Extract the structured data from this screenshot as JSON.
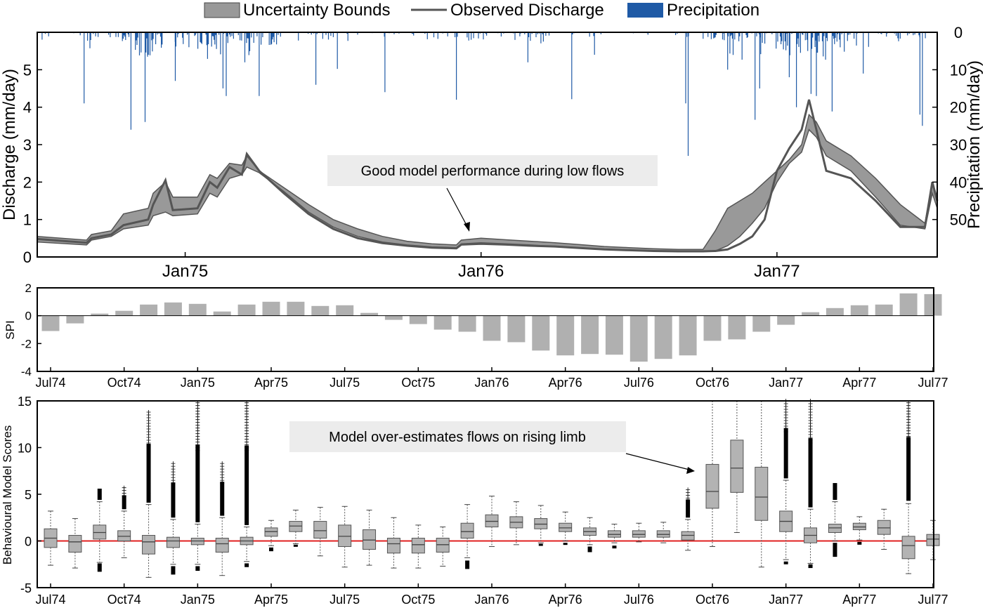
{
  "legend": {
    "items": [
      {
        "label": "Uncertainty Bounds",
        "icon": "gray-filled-rect",
        "color": "#999999"
      },
      {
        "label": "Observed Discharge",
        "icon": "dark-line",
        "color": "#555555"
      },
      {
        "label": "Precipitation",
        "icon": "blue-filled-rect",
        "color": "#1f5aa6"
      }
    ]
  },
  "chart_data": [
    {
      "type": "line",
      "ylabel": "Discharge (mm/day)",
      "ylabel_right": "Precipitation (mm/day)",
      "ylim": [
        0,
        6
      ],
      "ylim_right": [
        0,
        60
      ],
      "right_axis_inverted": true,
      "yticks": [
        "0",
        "1",
        "2",
        "3",
        "4",
        "5"
      ],
      "yticks_right": [
        "0",
        "10",
        "20",
        "30",
        "40",
        "50"
      ],
      "xticks": [
        "Jan75",
        "Jan76",
        "Jan77"
      ],
      "xlim": [
        0,
        36.5
      ],
      "xtick_positions": [
        6,
        18,
        30
      ],
      "annotation": "Good model performance during low flows",
      "series": [
        {
          "name": "Uncertainty Bounds",
          "kind": "band",
          "x": [
            0,
            2,
            2.2,
            3,
            3.5,
            4.5,
            4.7,
            5.2,
            5.5,
            6.5,
            7,
            7.3,
            7.8,
            8.3,
            8.5,
            9,
            10,
            11,
            12,
            13,
            14,
            15,
            16,
            17,
            17.2,
            18,
            19,
            20,
            21,
            22,
            23,
            24,
            25,
            26,
            27,
            27.5,
            28,
            28.5,
            29,
            29.5,
            30,
            30.5,
            31,
            31.3,
            31.6,
            32,
            33,
            34,
            35,
            36,
            36.3,
            36.5
          ],
          "upper": [
            0.55,
            0.45,
            0.6,
            0.7,
            1.15,
            1.3,
            1.7,
            2.0,
            1.6,
            1.6,
            2.2,
            2.1,
            2.5,
            2.45,
            2.7,
            2.3,
            1.85,
            1.4,
            1.0,
            0.75,
            0.55,
            0.42,
            0.35,
            0.32,
            0.45,
            0.5,
            0.46,
            0.42,
            0.38,
            0.33,
            0.28,
            0.25,
            0.22,
            0.2,
            0.2,
            0.7,
            1.3,
            1.5,
            1.7,
            2.0,
            2.3,
            2.6,
            3.0,
            3.8,
            3.6,
            3.1,
            2.7,
            2.1,
            1.4,
            0.9,
            2.0,
            1.6
          ],
          "lower": [
            0.4,
            0.32,
            0.45,
            0.55,
            0.75,
            0.85,
            1.1,
            1.2,
            1.1,
            1.15,
            1.7,
            1.6,
            2.1,
            2.2,
            2.4,
            2.25,
            1.75,
            1.2,
            0.8,
            0.55,
            0.4,
            0.32,
            0.27,
            0.25,
            0.35,
            0.38,
            0.35,
            0.32,
            0.28,
            0.24,
            0.2,
            0.18,
            0.16,
            0.15,
            0.15,
            0.16,
            0.3,
            0.55,
            0.9,
            1.3,
            2.0,
            2.5,
            2.8,
            3.4,
            3.2,
            2.7,
            2.3,
            1.6,
            0.85,
            0.75,
            1.7,
            1.3
          ]
        },
        {
          "name": "Observed Discharge",
          "kind": "line",
          "x": [
            0,
            2,
            2.2,
            3,
            3.5,
            4.5,
            4.7,
            5.2,
            5.5,
            6.5,
            7,
            7.3,
            7.8,
            8.3,
            8.5,
            9,
            10,
            11,
            12,
            13,
            14,
            15,
            16,
            17,
            17.2,
            18,
            19,
            20,
            21,
            22,
            23,
            24,
            25,
            26,
            27,
            27.5,
            28,
            28.5,
            29,
            29.5,
            30,
            30.5,
            31,
            31.3,
            31.6,
            32,
            33,
            34,
            35,
            36,
            36.3,
            36.5
          ],
          "y": [
            0.48,
            0.38,
            0.5,
            0.6,
            0.85,
            1.0,
            1.4,
            2.05,
            1.25,
            1.3,
            2.0,
            1.85,
            2.4,
            2.2,
            2.75,
            2.3,
            1.7,
            1.15,
            0.75,
            0.5,
            0.37,
            0.3,
            0.25,
            0.23,
            0.33,
            0.35,
            0.33,
            0.3,
            0.28,
            0.24,
            0.2,
            0.18,
            0.16,
            0.15,
            0.15,
            0.16,
            0.2,
            0.35,
            0.55,
            1.0,
            2.3,
            2.9,
            3.4,
            4.2,
            3.4,
            2.3,
            2.1,
            1.5,
            0.8,
            0.8,
            2.0,
            1.5
          ]
        },
        {
          "name": "Precipitation",
          "kind": "bar",
          "values_max": 48,
          "note": "daily precipitation hanging from top axis, up to ~48 mm/day"
        }
      ]
    },
    {
      "type": "bar",
      "ylabel": "SPI",
      "ylim": [
        -4,
        2
      ],
      "yticks": [
        "2",
        "0",
        "-2",
        "-4"
      ],
      "xticks": [
        "Jul74",
        "Oct74",
        "Jan75",
        "Apr75",
        "Jul75",
        "Oct75",
        "Jan76",
        "Apr76",
        "Jul76",
        "Oct76",
        "Jan77",
        "Apr77",
        "Jul77"
      ],
      "categories": [
        "Jul74",
        "Aug74",
        "Sep74",
        "Oct74",
        "Nov74",
        "Dec74",
        "Jan75",
        "Feb75",
        "Mar75",
        "Apr75",
        "May75",
        "Jun75",
        "Jul75",
        "Aug75",
        "Sep75",
        "Oct75",
        "Nov75",
        "Dec75",
        "Jan76",
        "Feb76",
        "Mar76",
        "Apr76",
        "May76",
        "Jun76",
        "Jul76",
        "Aug76",
        "Sep76",
        "Oct76",
        "Nov76",
        "Dec76",
        "Jan77",
        "Feb77",
        "Mar77",
        "Apr77",
        "May77",
        "Jun77",
        "Jul77"
      ],
      "values": [
        -1.1,
        -0.55,
        0.15,
        0.35,
        0.8,
        0.95,
        0.85,
        0.3,
        0.8,
        1.0,
        1.0,
        0.7,
        0.75,
        0.2,
        -0.3,
        -0.6,
        -1.0,
        -1.15,
        -1.8,
        -1.9,
        -2.5,
        -2.85,
        -2.75,
        -2.8,
        -3.3,
        -3.1,
        -2.85,
        -1.8,
        -1.7,
        -1.15,
        -0.65,
        0.25,
        0.55,
        0.75,
        0.8,
        1.6,
        1.55
      ],
      "color": "#b0b0b0"
    },
    {
      "type": "box",
      "ylabel": "Behavioural Model Scores",
      "ylim": [
        -5,
        15
      ],
      "yticks": [
        "15",
        "10",
        "5",
        "0",
        "-5"
      ],
      "xticks": [
        "Jul74",
        "Oct74",
        "Jan75",
        "Apr75",
        "Jul75",
        "Oct75",
        "Jan76",
        "Apr76",
        "Jul76",
        "Oct76",
        "Jan77",
        "Apr77",
        "Jul77"
      ],
      "reference_line": 0,
      "reference_color": "#e02020",
      "annotation": "Model over-estimates flows on rising limb",
      "boxes": [
        {
          "q1": -0.7,
          "med": 0.3,
          "q3": 1.3,
          "wlo": -2.6,
          "whi": 3.2
        },
        {
          "q1": -1.2,
          "med": -0.1,
          "q3": 0.6,
          "wlo": -2.9,
          "whi": 2.4
        },
        {
          "q1": 0.2,
          "med": 0.9,
          "q3": 1.7,
          "wlo": -2.3,
          "whi": 4.2,
          "outhi": [
            4.4,
            5.6
          ],
          "outlo": [
            -3.3,
            -2.4
          ]
        },
        {
          "q1": 0.0,
          "med": 0.5,
          "q3": 1.1,
          "wlo": -1.8,
          "whi": 3.2,
          "outhi": [
            3.4,
            5.7
          ]
        },
        {
          "q1": -1.4,
          "med": -0.1,
          "q3": 0.6,
          "wlo": -3.9,
          "whi": 3.9,
          "outhi": [
            4.1,
            13.8
          ]
        },
        {
          "q1": -0.7,
          "med": 0.0,
          "q3": 0.4,
          "wlo": -2.5,
          "whi": 2.3,
          "outhi": [
            2.5,
            8.3
          ],
          "outlo": [
            -3.6,
            -2.7
          ]
        },
        {
          "q1": -0.4,
          "med": 0.0,
          "q3": 0.3,
          "wlo": -2.5,
          "whi": 1.8,
          "outhi": [
            2.0,
            14.8
          ],
          "outlo": [
            -3.2,
            -2.7
          ]
        },
        {
          "q1": -1.2,
          "med": -0.3,
          "q3": 0.3,
          "wlo": -3.7,
          "whi": 2.5,
          "outhi": [
            2.7,
            8.3
          ]
        },
        {
          "q1": -0.4,
          "med": 0.0,
          "q3": 0.4,
          "wlo": -2.2,
          "whi": 1.5,
          "outhi": [
            1.7,
            14.8
          ],
          "outlo": [
            -2.8,
            -2.4
          ]
        },
        {
          "q1": 0.5,
          "med": 1.0,
          "q3": 1.4,
          "wlo": -0.5,
          "whi": 2.2,
          "outlo": [
            -1.1,
            -0.7
          ]
        },
        {
          "q1": 1.0,
          "med": 1.6,
          "q3": 2.1,
          "wlo": -0.3,
          "whi": 3.3,
          "outlo": [
            -0.6,
            -0.4
          ]
        },
        {
          "q1": 0.3,
          "med": 1.1,
          "q3": 2.1,
          "wlo": -1.6,
          "whi": 3.6
        },
        {
          "q1": -0.6,
          "med": 0.5,
          "q3": 1.7,
          "wlo": -2.8,
          "whi": 3.7
        },
        {
          "q1": -0.9,
          "med": 0.1,
          "q3": 1.2,
          "wlo": -2.6,
          "whi": 3.3
        },
        {
          "q1": -1.3,
          "med": -0.3,
          "q3": 0.3,
          "wlo": -2.9,
          "whi": 2.5
        },
        {
          "q1": -1.3,
          "med": -0.4,
          "q3": 0.3,
          "wlo": -2.9,
          "whi": 1.7
        },
        {
          "q1": -1.2,
          "med": -0.4,
          "q3": 0.3,
          "wlo": -2.7,
          "whi": 1.5
        },
        {
          "q1": 0.3,
          "med": 1.0,
          "q3": 1.9,
          "wlo": -1.8,
          "whi": 3.9,
          "outlo": [
            -3.0,
            -2.1
          ]
        },
        {
          "q1": 1.5,
          "med": 2.1,
          "q3": 2.8,
          "wlo": -0.6,
          "whi": 4.8
        },
        {
          "q1": 1.4,
          "med": 2.0,
          "q3": 2.6,
          "wlo": -0.4,
          "whi": 4.2
        },
        {
          "q1": 1.3,
          "med": 1.8,
          "q3": 2.4,
          "wlo": -0.2,
          "whi": 3.8,
          "outlo": [
            -0.4,
            -0.3
          ]
        },
        {
          "q1": 1.0,
          "med": 1.4,
          "q3": 1.9,
          "wlo": 0.0,
          "whi": 3.1,
          "outlo": [
            -0.4,
            -0.2
          ]
        },
        {
          "q1": 0.6,
          "med": 1.0,
          "q3": 1.4,
          "wlo": -0.4,
          "whi": 2.5,
          "outlo": [
            -1.2,
            -0.6
          ]
        },
        {
          "q1": 0.4,
          "med": 0.7,
          "q3": 1.1,
          "wlo": -0.2,
          "whi": 1.8,
          "outlo": [
            -0.8,
            -0.5
          ]
        },
        {
          "q1": 0.4,
          "med": 0.7,
          "q3": 1.1,
          "wlo": -0.1,
          "whi": 1.9
        },
        {
          "q1": 0.4,
          "med": 0.7,
          "q3": 1.1,
          "wlo": -0.2,
          "whi": 2.0
        },
        {
          "q1": 0.1,
          "med": 0.6,
          "q3": 1.0,
          "wlo": -1.0,
          "whi": 2.3,
          "outhi": [
            2.5,
            5.5
          ]
        },
        {
          "q1": 3.5,
          "med": 5.3,
          "q3": 8.2,
          "wlo": -0.6,
          "whi": 15.0
        },
        {
          "q1": 5.2,
          "med": 7.8,
          "q3": 10.8,
          "wlo": 0.9,
          "whi": 15.0
        },
        {
          "q1": 2.2,
          "med": 4.7,
          "q3": 7.9,
          "wlo": -2.8,
          "whi": 15.0
        },
        {
          "q1": 1.0,
          "med": 2.1,
          "q3": 3.2,
          "wlo": -2.0,
          "whi": 6.5,
          "outhi": [
            6.7,
            15.0
          ],
          "outlo": [
            -2.5,
            -2.2
          ]
        },
        {
          "q1": -0.2,
          "med": 0.6,
          "q3": 1.4,
          "wlo": -2.4,
          "whi": 3.4,
          "outhi": [
            3.6,
            15.0
          ],
          "outlo": [
            -2.9,
            -2.5
          ]
        },
        {
          "q1": 0.9,
          "med": 1.4,
          "q3": 1.8,
          "wlo": 0.0,
          "whi": 4.2,
          "outhi": [
            4.4,
            6.2
          ],
          "outlo": [
            -1.7,
            -0.2
          ]
        },
        {
          "q1": 1.2,
          "med": 1.5,
          "q3": 1.9,
          "wlo": 0.1,
          "whi": 2.6,
          "outlo": [
            -0.4,
            -0.1
          ]
        },
        {
          "q1": 0.7,
          "med": 1.4,
          "q3": 2.2,
          "wlo": -0.9,
          "whi": 3.4
        },
        {
          "q1": -1.9,
          "med": -0.5,
          "q3": 0.5,
          "wlo": -3.5,
          "whi": 4.0,
          "outhi": [
            4.3,
            14.8
          ]
        },
        {
          "q1": -0.5,
          "med": 0.2,
          "q3": 0.7,
          "wlo": -2.0,
          "whi": 2.2
        }
      ]
    }
  ]
}
